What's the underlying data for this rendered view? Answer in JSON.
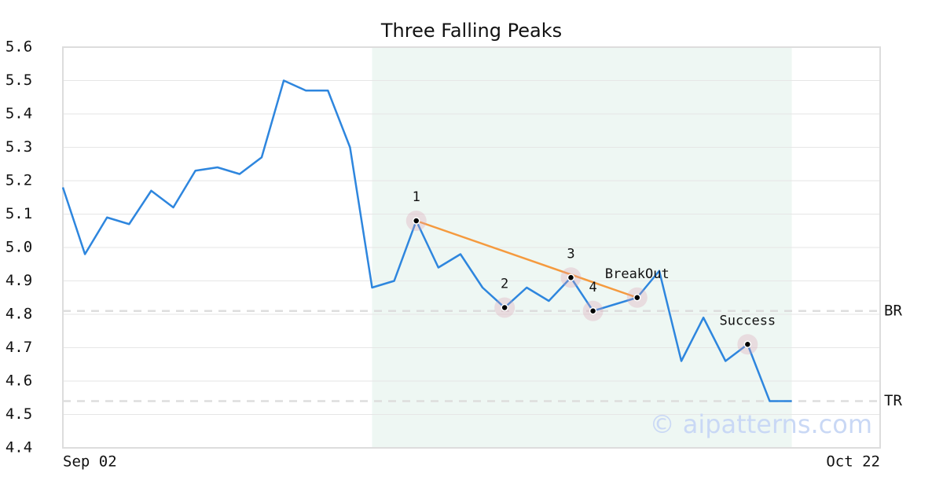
{
  "chart_data": {
    "type": "line",
    "title": "Three Falling Peaks",
    "x": [
      0,
      1,
      2,
      3,
      4,
      5,
      6,
      7,
      8,
      9,
      10,
      11,
      12,
      13,
      14,
      15,
      16,
      17,
      18,
      19,
      20,
      21,
      22,
      23,
      24,
      25,
      26,
      27,
      28,
      29,
      30,
      31,
      32,
      33
    ],
    "values": [
      5.18,
      4.98,
      5.09,
      5.07,
      5.17,
      5.12,
      5.23,
      5.24,
      5.22,
      5.27,
      5.5,
      5.47,
      5.47,
      5.3,
      4.88,
      4.9,
      5.08,
      4.94,
      4.98,
      4.88,
      4.82,
      4.88,
      4.84,
      4.91,
      4.81,
      4.83,
      4.85,
      4.93,
      4.66,
      4.79,
      4.66,
      4.71,
      4.54,
      4.54
    ],
    "color": "#2e86de",
    "xlim": [
      0,
      37
    ],
    "xticks": [
      {
        "value": 0,
        "label": "Sep 02"
      },
      {
        "value": 37,
        "label": "Oct 22"
      }
    ],
    "ylim": [
      4.4,
      5.6
    ],
    "yticks": [
      {
        "value": 4.4,
        "label": "4.4"
      },
      {
        "value": 4.5,
        "label": "4.5"
      },
      {
        "value": 4.6,
        "label": "4.6"
      },
      {
        "value": 4.7,
        "label": "4.7"
      },
      {
        "value": 4.8,
        "label": "4.8"
      },
      {
        "value": 4.9,
        "label": "4.9"
      },
      {
        "value": 5.0,
        "label": "5.0"
      },
      {
        "value": 5.1,
        "label": "5.1"
      },
      {
        "value": 5.2,
        "label": "5.2"
      },
      {
        "value": 5.3,
        "label": "5.3"
      },
      {
        "value": 5.4,
        "label": "5.4"
      },
      {
        "value": 5.5,
        "label": "5.5"
      },
      {
        "value": 5.6,
        "label": "5.6"
      }
    ],
    "grid": true,
    "shade": [
      14,
      33
    ],
    "hlines": [
      {
        "label": "BR",
        "value": 4.81
      },
      {
        "label": "TR",
        "value": 4.54
      }
    ],
    "annotations": [
      {
        "label": "1",
        "x": 16,
        "y": 5.08
      },
      {
        "label": "2",
        "x": 20,
        "y": 4.82
      },
      {
        "label": "3",
        "x": 23,
        "y": 4.91
      },
      {
        "label": "4",
        "x": 24,
        "y": 4.81
      },
      {
        "label": "BreakOut",
        "x": 26,
        "y": 4.85
      },
      {
        "label": "Success",
        "x": 31,
        "y": 4.71
      }
    ],
    "pattern_color": "#f59a3e",
    "watermark": "© aipatterns.com"
  }
}
